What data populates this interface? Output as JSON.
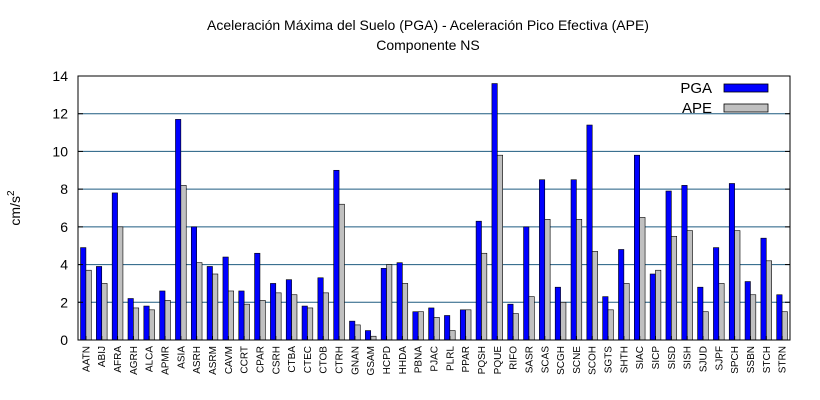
{
  "chart_data": {
    "type": "bar",
    "title": "Aceleración Máxima del Suelo (PGA) -  Aceleración Pico Efectiva (APE)",
    "subtitle": "Componente NS",
    "ylabel": "cm/s",
    "ylabel_superscript": "2",
    "xlabel": "",
    "ylim": [
      0,
      14
    ],
    "yticks": [
      0,
      2,
      4,
      6,
      8,
      10,
      12,
      14
    ],
    "grid": "horizontal",
    "legend_position": "top-right",
    "categories": [
      "AATN",
      "ABIJ",
      "AFRA",
      "AGRH",
      "ALCA",
      "APMR",
      "ASIA",
      "ASRH",
      "ASRM",
      "CAVM",
      "CCRT",
      "CPAR",
      "CSRH",
      "CTBA",
      "CTEC",
      "CTOB",
      "CTRH",
      "GNAN",
      "GSAM",
      "HCPD",
      "HHDA",
      "PBNA",
      "PJAC",
      "PLRL",
      "PPAR",
      "PQSH",
      "PQUE",
      "RIFO",
      "SASR",
      "SCAS",
      "SCGH",
      "SCNE",
      "SCOH",
      "SGTS",
      "SHTH",
      "SIAC",
      "SICP",
      "SISD",
      "SISH",
      "SJUD",
      "SJPF",
      "SPCH",
      "SSBN",
      "STCH",
      "STRN"
    ],
    "series": [
      {
        "name": "PGA",
        "color": "#0000ff",
        "values": [
          4.9,
          3.9,
          7.8,
          2.2,
          1.8,
          2.6,
          11.7,
          6.0,
          3.9,
          4.4,
          2.6,
          4.6,
          3.0,
          3.2,
          1.8,
          3.3,
          9.0,
          1.0,
          0.5,
          3.8,
          4.1,
          1.5,
          1.7,
          1.3,
          1.6,
          6.3,
          13.6,
          1.9,
          6.0,
          8.5,
          2.8,
          8.5,
          11.4,
          2.3,
          4.8,
          9.8,
          3.5,
          7.9,
          8.2,
          2.8,
          4.9,
          8.3,
          3.1,
          5.4,
          2.4
        ]
      },
      {
        "name": "APE",
        "color": "#c0c0c0",
        "values": [
          3.7,
          3.0,
          6.0,
          1.7,
          1.6,
          2.1,
          8.2,
          4.1,
          3.5,
          2.6,
          1.9,
          2.1,
          2.5,
          2.4,
          1.7,
          2.5,
          7.2,
          0.8,
          0.2,
          4.0,
          3.0,
          1.5,
          1.2,
          0.5,
          1.6,
          4.6,
          9.8,
          1.4,
          2.3,
          6.4,
          2.0,
          6.4,
          4.7,
          1.6,
          3.0,
          6.5,
          3.7,
          5.5,
          5.8,
          1.5,
          3.0,
          5.8,
          2.4,
          4.2,
          1.5
        ]
      }
    ]
  }
}
